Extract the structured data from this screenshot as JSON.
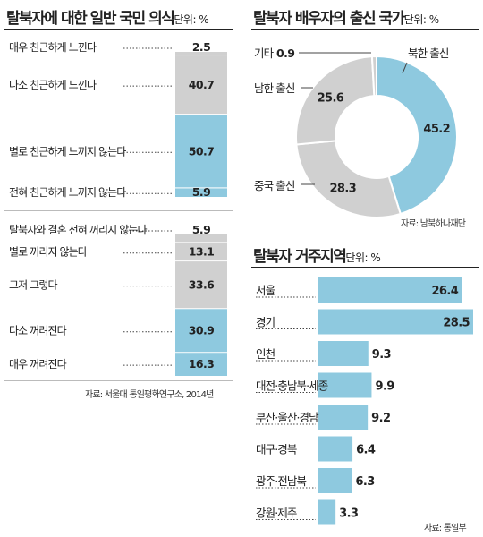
{
  "chart_data": [
    {
      "type": "bar",
      "title": "탈북자에 대한 일반 국민 의식",
      "unit": "단위: %",
      "categories": [
        "매우 친근하게 느낀다",
        "다소 친근하게 느낀다",
        "별로 친근하게 느끼지 않는다",
        "전혀 친근하게 느끼지 않는다"
      ],
      "values": [
        2.5,
        40.7,
        50.7,
        5.9
      ],
      "value_labels": [
        "2.5",
        "40.7",
        "50.7",
        "5.9"
      ],
      "colors": [
        "#d0d0d0",
        "#d0d0d0",
        "#8ec9df",
        "#8ec9df"
      ]
    },
    {
      "type": "bar",
      "title": "",
      "categories": [
        "탈북자와 결혼 전혀 꺼리지 않는다",
        "별로 꺼리지 않는다",
        "그저 그렇다",
        "다소 꺼려진다",
        "매우 꺼려진다"
      ],
      "values": [
        5.9,
        13.1,
        33.6,
        30.9,
        16.3
      ],
      "value_labels": [
        "5.9",
        "13.1",
        "33.6",
        "30.9",
        "16.3"
      ],
      "colors": [
        "#d0d0d0",
        "#d0d0d0",
        "#d0d0d0",
        "#8ec9df",
        "#8ec9df"
      ]
    },
    {
      "type": "pie",
      "title": "탈북자 배우자의 출신 국가",
      "unit": "단위: %",
      "categories": [
        "북한 출신",
        "중국 출신",
        "남한 출신",
        "기타"
      ],
      "values": [
        45.2,
        28.3,
        25.6,
        0.9
      ],
      "value_labels": [
        "45.2",
        "28.3",
        "25.6",
        "0.9"
      ],
      "colors": [
        "#8ec9df",
        "#d0d0d0",
        "#d0d0d0",
        "#d0d0d0"
      ]
    },
    {
      "type": "bar",
      "title": "탈북자 거주지역",
      "unit": "단위: %",
      "categories": [
        "서울",
        "경기",
        "인천",
        "대전·충남북·세종",
        "부산·울산·경남",
        "대구·경북",
        "광주·전남북",
        "강원·제주"
      ],
      "values": [
        26.4,
        28.5,
        9.3,
        9.9,
        9.2,
        6.4,
        6.3,
        3.3
      ],
      "value_labels": [
        "26.4",
        "28.5",
        "9.3",
        "9.9",
        "9.2",
        "6.4",
        "6.3",
        "3.3"
      ],
      "color": "#8ec9df"
    }
  ],
  "sources": {
    "left": "자료: 서울대 통일평화연구소, 2014년",
    "pie": "자료: 남북하나재단",
    "region": "자료: 통일부"
  }
}
